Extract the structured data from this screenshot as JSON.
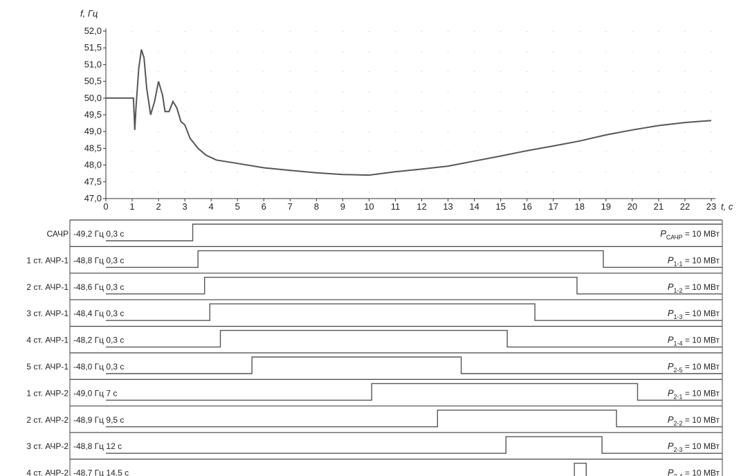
{
  "chart_data": {
    "type": "line",
    "xlabel": "t, с",
    "ylabel": "f, Гц",
    "xlim": [
      0,
      23
    ],
    "ylim": [
      47.0,
      52.0
    ],
    "x_ticks": [
      "0",
      "1",
      "2",
      "3",
      "4",
      "5",
      "6",
      "7",
      "8",
      "9",
      "10",
      "11",
      "12",
      "13",
      "14",
      "15",
      "16",
      "17",
      "18",
      "19",
      "20",
      "21",
      "22",
      "23"
    ],
    "y_ticks": [
      "47,0",
      "47,5",
      "48,0",
      "48,5",
      "49,0",
      "49,5",
      "50,0",
      "50,5",
      "51,0",
      "51,5",
      "52,0"
    ],
    "series": [
      {
        "points": [
          [
            0,
            50.0
          ],
          [
            1.0,
            50.0
          ],
          [
            1.05,
            50.0
          ],
          [
            1.1,
            49.05
          ],
          [
            1.15,
            49.8
          ],
          [
            1.25,
            50.9
          ],
          [
            1.35,
            51.45
          ],
          [
            1.45,
            51.2
          ],
          [
            1.55,
            50.3
          ],
          [
            1.7,
            49.5
          ],
          [
            1.85,
            49.9
          ],
          [
            2.0,
            50.5
          ],
          [
            2.15,
            50.1
          ],
          [
            2.25,
            49.6
          ],
          [
            2.4,
            49.6
          ],
          [
            2.55,
            49.9
          ],
          [
            2.7,
            49.7
          ],
          [
            2.85,
            49.3
          ],
          [
            3.0,
            49.2
          ],
          [
            3.2,
            48.8
          ],
          [
            3.5,
            48.5
          ],
          [
            3.8,
            48.3
          ],
          [
            4.2,
            48.15
          ],
          [
            5.0,
            48.05
          ],
          [
            6.0,
            47.92
          ],
          [
            7.0,
            47.84
          ],
          [
            8.0,
            47.77
          ],
          [
            9.0,
            47.72
          ],
          [
            10.0,
            47.7
          ],
          [
            11.0,
            47.8
          ],
          [
            12.0,
            47.88
          ],
          [
            13.0,
            47.97
          ],
          [
            14.0,
            48.12
          ],
          [
            15.0,
            48.27
          ],
          [
            16.0,
            48.43
          ],
          [
            17.0,
            48.57
          ],
          [
            18.0,
            48.72
          ],
          [
            19.0,
            48.9
          ],
          [
            20.0,
            49.05
          ],
          [
            21.0,
            49.18
          ],
          [
            22.0,
            49.27
          ],
          [
            23.0,
            49.33
          ]
        ]
      }
    ],
    "stages": [
      {
        "name": "САЧР",
        "setting": "-49,2 Гц 0,3 с",
        "on": 3.3,
        "off": 23.0,
        "p_main": "P",
        "p_sub": "САЧР",
        "p_value": " = 10 МВт"
      },
      {
        "name": "1 ст. АЧР-1",
        "setting": "-48,8 Гц 0,3 с",
        "on": 3.5,
        "off": 18.9,
        "p_main": "P",
        "p_sub": "1-1",
        "p_value": " = 10 МВт"
      },
      {
        "name": "2 ст. АЧР-1",
        "setting": "-48,6 Гц 0,3 с",
        "on": 3.75,
        "off": 17.9,
        "p_main": "P",
        "p_sub": "1-2",
        "p_value": " = 10 МВт"
      },
      {
        "name": "3 ст. АЧР-1",
        "setting": "-48,4 Гц 0,3 с",
        "on": 3.95,
        "off": 16.3,
        "p_main": "P",
        "p_sub": "1-3",
        "p_value": " = 10 МВт"
      },
      {
        "name": "4 ст. АЧР-1",
        "setting": "-48,2 Гц 0,3 с",
        "on": 4.35,
        "off": 15.25,
        "p_main": "P",
        "p_sub": "1-4",
        "p_value": " = 10 МВт"
      },
      {
        "name": "5 ст. АЧР-1",
        "setting": "-48,0 Гц 0,3 с",
        "on": 5.55,
        "off": 13.5,
        "p_main": "P",
        "p_sub": "2-5",
        "p_value": " = 10 МВт"
      },
      {
        "name": "1 ст. АЧР-2",
        "setting": "-49,0 Гц 7 с",
        "on": 10.1,
        "off": 20.2,
        "p_main": "P",
        "p_sub": "2-1",
        "p_value": " = 10 МВт"
      },
      {
        "name": "2 ст. АЧР-2",
        "setting": "-48,9 Гц 9,5 с",
        "on": 12.6,
        "off": 19.4,
        "p_main": "P",
        "p_sub": "2-2",
        "p_value": " = 10 МВт"
      },
      {
        "name": "3 ст. АЧР-2",
        "setting": "-48,8 Гц 12 с",
        "on": 15.2,
        "off": 18.85,
        "p_main": "P",
        "p_sub": "2-3",
        "p_value": " = 10 МВт"
      },
      {
        "name": "4 ст. АЧР-2",
        "setting": "-48,7 Гц 14,5 с",
        "on": 17.8,
        "off": 18.25,
        "p_main": "P",
        "p_sub": "2-4",
        "p_value": " = 10 МВт"
      }
    ]
  }
}
